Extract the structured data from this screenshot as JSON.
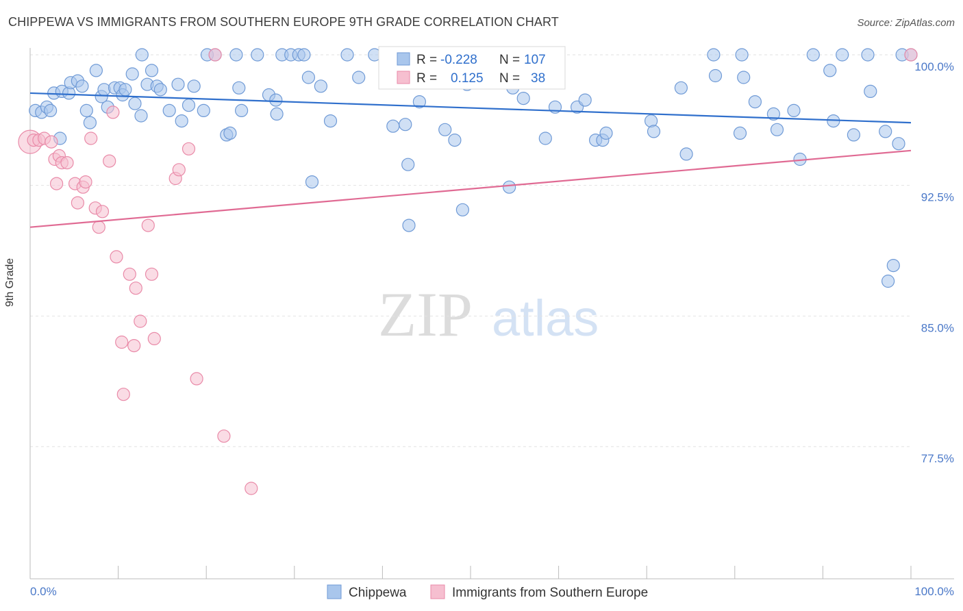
{
  "header": {
    "title": "CHIPPEWA VS IMMIGRANTS FROM SOUTHERN EUROPE 9TH GRADE CORRELATION CHART",
    "source": "Source: ZipAtlas.com"
  },
  "watermark": {
    "zip": "ZIP",
    "atlas": "atlas"
  },
  "legend_box": {
    "rows": [
      {
        "r_label": "R =",
        "r_value": "-0.228",
        "n_label": "N =",
        "n_value": "107"
      },
      {
        "r_label": "R =",
        "r_value": "0.125",
        "n_label": "N =",
        "n_value": "38"
      }
    ]
  },
  "colors": {
    "blue_fill": "#a9c6ec",
    "blue_stroke": "#6f9ad6",
    "blue_line": "#2f6fcc",
    "pink_fill": "#f6bfd0",
    "pink_stroke": "#e98aa8",
    "pink_line": "#e06a93",
    "tick_color": "#4a78c8",
    "grid": "#e2e2e2"
  },
  "chart_data": {
    "type": "scatter",
    "title": "CHIPPEWA VS IMMIGRANTS FROM SOUTHERN EUROPE 9TH GRADE CORRELATION CHART",
    "xlabel": "",
    "ylabel": "9th Grade",
    "xlim": [
      0,
      100
    ],
    "ylim": [
      70,
      101
    ],
    "x_tick_labels": [
      "0.0%",
      "100.0%"
    ],
    "y_ticks": [
      {
        "value": 100,
        "label": "100.0%"
      },
      {
        "value": 92.5,
        "label": "92.5%"
      },
      {
        "value": 85,
        "label": "85.0%"
      },
      {
        "value": 77.5,
        "label": "77.5%"
      }
    ],
    "grid": true,
    "legend_position": "bottom",
    "series": [
      {
        "name": "Chippewa",
        "r": -0.228,
        "n": 107,
        "trend": [
          [
            0,
            97.8
          ],
          [
            100,
            96.1
          ]
        ],
        "points": [
          [
            0.6,
            96.8
          ],
          [
            1.3,
            96.7
          ],
          [
            1.9,
            97.0
          ],
          [
            2.3,
            96.8
          ],
          [
            2.7,
            97.8
          ],
          [
            3.4,
            95.2
          ],
          [
            3.6,
            97.9
          ],
          [
            4.4,
            97.8
          ],
          [
            4.6,
            98.4
          ],
          [
            5.4,
            98.5
          ],
          [
            5.9,
            98.2
          ],
          [
            6.4,
            96.8
          ],
          [
            6.8,
            96.1
          ],
          [
            7.5,
            99.1
          ],
          [
            8.1,
            97.6
          ],
          [
            8.4,
            98.0
          ],
          [
            8.8,
            97.0
          ],
          [
            9.6,
            98.1
          ],
          [
            10.2,
            98.1
          ],
          [
            10.5,
            97.7
          ],
          [
            10.8,
            98.0
          ],
          [
            11.6,
            98.9
          ],
          [
            11.9,
            97.2
          ],
          [
            12.6,
            96.5
          ],
          [
            12.7,
            100.0
          ],
          [
            13.3,
            98.3
          ],
          [
            13.8,
            99.1
          ],
          [
            14.4,
            98.2
          ],
          [
            14.8,
            98.0
          ],
          [
            15.8,
            96.8
          ],
          [
            16.8,
            98.3
          ],
          [
            17.2,
            96.2
          ],
          [
            18.0,
            97.1
          ],
          [
            18.6,
            98.2
          ],
          [
            19.7,
            96.8
          ],
          [
            20.1,
            100.0
          ],
          [
            21.0,
            100.0
          ],
          [
            22.3,
            95.4
          ],
          [
            22.7,
            95.5
          ],
          [
            23.4,
            100.0
          ],
          [
            23.7,
            98.1
          ],
          [
            24.0,
            96.8
          ],
          [
            25.8,
            100.0
          ],
          [
            27.1,
            97.7
          ],
          [
            27.9,
            97.4
          ],
          [
            28.0,
            96.6
          ],
          [
            28.6,
            100.0
          ],
          [
            29.6,
            100.0
          ],
          [
            30.5,
            100.0
          ],
          [
            31.1,
            100.0
          ],
          [
            31.6,
            98.7
          ],
          [
            32.0,
            92.7
          ],
          [
            33.0,
            98.2
          ],
          [
            34.1,
            96.2
          ],
          [
            36.0,
            100.0
          ],
          [
            37.3,
            98.7
          ],
          [
            39.1,
            100.0
          ],
          [
            41.2,
            95.9
          ],
          [
            42.6,
            96.0
          ],
          [
            42.9,
            93.7
          ],
          [
            43.0,
            90.2
          ],
          [
            44.2,
            97.3
          ],
          [
            45.6,
            99.0
          ],
          [
            47.1,
            95.7
          ],
          [
            48.2,
            95.1
          ],
          [
            49.1,
            91.1
          ],
          [
            49.6,
            98.3
          ],
          [
            51.9,
            99.6
          ],
          [
            53.2,
            100.0
          ],
          [
            53.5,
            98.6
          ],
          [
            54.4,
            92.4
          ],
          [
            54.8,
            98.1
          ],
          [
            56.0,
            97.5
          ],
          [
            58.5,
            95.2
          ],
          [
            59.6,
            97.0
          ],
          [
            62.1,
            97.0
          ],
          [
            63.0,
            97.4
          ],
          [
            64.2,
            95.1
          ],
          [
            65.0,
            95.1
          ],
          [
            65.4,
            95.5
          ],
          [
            70.5,
            96.2
          ],
          [
            70.8,
            95.6
          ],
          [
            73.9,
            98.1
          ],
          [
            74.5,
            94.3
          ],
          [
            77.6,
            100.0
          ],
          [
            77.8,
            98.8
          ],
          [
            80.6,
            95.5
          ],
          [
            80.8,
            100.0
          ],
          [
            81.0,
            98.7
          ],
          [
            82.3,
            97.3
          ],
          [
            84.4,
            96.6
          ],
          [
            84.8,
            95.7
          ],
          [
            86.7,
            96.8
          ],
          [
            87.4,
            94.0
          ],
          [
            88.9,
            100.0
          ],
          [
            90.8,
            99.1
          ],
          [
            91.2,
            96.2
          ],
          [
            92.2,
            100.0
          ],
          [
            93.5,
            95.4
          ],
          [
            95.1,
            100.0
          ],
          [
            95.4,
            97.9
          ],
          [
            97.1,
            95.6
          ],
          [
            97.4,
            87.0
          ],
          [
            98.0,
            87.9
          ],
          [
            98.6,
            94.9
          ],
          [
            99.0,
            100.0
          ],
          [
            100.0,
            100.0
          ]
        ]
      },
      {
        "name": "Immigrants from Southern Europe",
        "r": 0.125,
        "n": 38,
        "trend": [
          [
            0,
            90.1
          ],
          [
            100,
            94.5
          ]
        ],
        "points": [
          [
            0.0,
            95.0
          ],
          [
            0.4,
            95.1
          ],
          [
            1.0,
            95.1
          ],
          [
            1.6,
            95.2
          ],
          [
            2.4,
            95.0
          ],
          [
            2.8,
            94.0
          ],
          [
            3.0,
            92.6
          ],
          [
            3.3,
            94.2
          ],
          [
            3.6,
            93.8
          ],
          [
            4.2,
            93.8
          ],
          [
            5.1,
            92.6
          ],
          [
            5.4,
            91.5
          ],
          [
            6.0,
            92.4
          ],
          [
            6.3,
            92.7
          ],
          [
            6.9,
            95.2
          ],
          [
            7.4,
            91.2
          ],
          [
            7.8,
            90.1
          ],
          [
            8.2,
            91.0
          ],
          [
            9.0,
            93.9
          ],
          [
            9.4,
            96.7
          ],
          [
            9.8,
            88.4
          ],
          [
            10.4,
            83.5
          ],
          [
            10.6,
            80.5
          ],
          [
            11.3,
            87.4
          ],
          [
            11.8,
            83.3
          ],
          [
            12.0,
            86.6
          ],
          [
            12.5,
            84.7
          ],
          [
            13.4,
            90.2
          ],
          [
            13.8,
            87.4
          ],
          [
            14.1,
            83.7
          ],
          [
            16.5,
            92.9
          ],
          [
            16.9,
            93.4
          ],
          [
            18.0,
            94.6
          ],
          [
            18.9,
            81.4
          ],
          [
            21.0,
            100.0
          ],
          [
            22.0,
            78.1
          ],
          [
            25.1,
            75.1
          ],
          [
            100.0,
            100.0
          ]
        ]
      }
    ]
  },
  "bottom_legend": {
    "items": [
      {
        "label": "Chippewa"
      },
      {
        "label": "Immigrants from Southern Europe"
      }
    ]
  }
}
